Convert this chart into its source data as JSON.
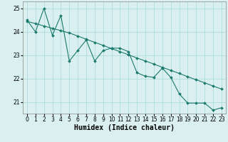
{
  "line1_x": [
    0,
    1,
    2,
    3,
    4,
    5,
    6,
    7,
    8,
    9,
    10,
    11,
    12,
    13,
    14,
    15,
    16,
    17,
    18,
    19,
    20,
    21,
    22,
    23
  ],
  "line1_y": [
    24.5,
    24.0,
    25.0,
    23.85,
    24.7,
    22.75,
    23.2,
    23.65,
    22.75,
    23.2,
    23.3,
    23.3,
    23.15,
    22.25,
    22.1,
    22.05,
    22.45,
    22.05,
    21.35,
    20.95,
    20.95,
    20.95,
    20.65,
    20.75
  ],
  "line2_x": [
    0,
    1,
    2,
    3,
    4,
    5,
    6,
    7,
    8,
    9,
    10,
    11,
    12,
    13,
    14,
    15,
    16,
    17,
    18,
    19,
    20,
    21,
    22,
    23
  ],
  "line2_y": [
    24.45,
    24.35,
    24.25,
    24.15,
    24.05,
    23.95,
    23.82,
    23.68,
    23.55,
    23.42,
    23.28,
    23.15,
    23.02,
    22.88,
    22.75,
    22.62,
    22.48,
    22.35,
    22.22,
    22.08,
    21.95,
    21.82,
    21.68,
    21.55
  ],
  "xlabel": "Humidex (Indice chaleur)",
  "ylim": [
    20.5,
    25.3
  ],
  "xlim": [
    -0.5,
    23.5
  ],
  "yticks": [
    21,
    22,
    23,
    24,
    25
  ],
  "xticks": [
    0,
    1,
    2,
    3,
    4,
    5,
    6,
    7,
    8,
    9,
    10,
    11,
    12,
    13,
    14,
    15,
    16,
    17,
    18,
    19,
    20,
    21,
    22,
    23
  ],
  "line_color": "#1a7a6e",
  "bg_color": "#daf0f0",
  "grid_color": "#aad8d8",
  "marker": "D",
  "marker_size": 2.0,
  "line_width": 0.8,
  "xlabel_fontsize": 7,
  "tick_fontsize": 5.5
}
